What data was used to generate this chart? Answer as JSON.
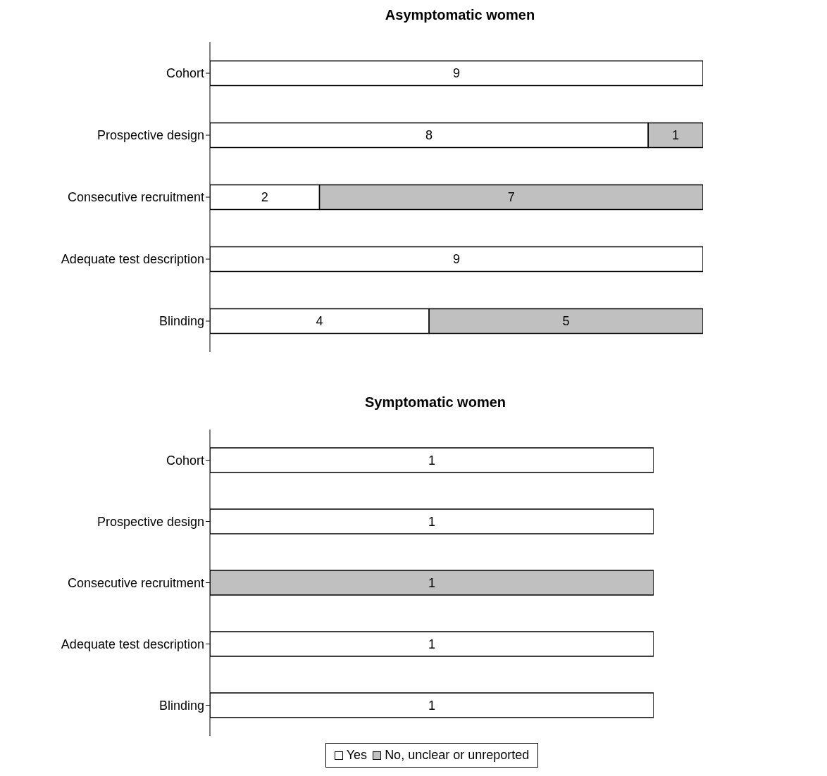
{
  "chart_data": [
    {
      "type": "bar",
      "title": "Asymptomatic women",
      "orientation": "horizontal",
      "stacked": true,
      "tick_labels": "y",
      "data_labels": true,
      "legend": false,
      "categories": [
        "Cohort",
        "Prospective design",
        "Consecutive recruitment",
        "Adequate test description",
        "Blinding"
      ],
      "series": [
        {
          "color": "#ffffff",
          "values": [
            9,
            8,
            2,
            9,
            4
          ]
        },
        {
          "color": "#c0c0c0",
          "values": [
            null,
            1,
            7,
            null,
            5
          ]
        }
      ]
    },
    {
      "type": "bar",
      "title": "Symptomatic women",
      "orientation": "horizontal",
      "stacked": true,
      "tick_labels": "y",
      "data_labels": true,
      "legend": "bottom",
      "categories": [
        "Cohort",
        "Prospective design",
        "Consecutive recruitment",
        "Adequate test description",
        "Blinding"
      ],
      "series": [
        {
          "name": "Yes",
          "color": "#ffffff",
          "values": [
            1,
            1,
            null,
            1,
            1
          ]
        },
        {
          "name": "No, unclear or unreported",
          "color": "#c0c0c0",
          "values": [
            null,
            null,
            1,
            null,
            null
          ]
        }
      ]
    }
  ]
}
